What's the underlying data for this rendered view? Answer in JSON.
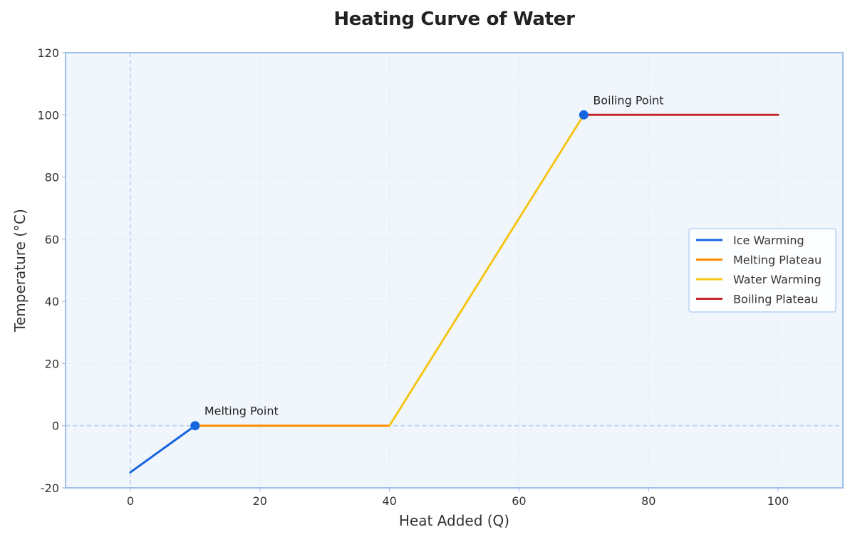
{
  "chart_data": {
    "type": "line",
    "title": "Heating Curve of Water",
    "xlabel": "Heat Added (Q)",
    "ylabel": "Temperature (°C)",
    "xlim": [
      -10,
      110
    ],
    "ylim": [
      -20,
      120
    ],
    "xticks": [
      0,
      20,
      40,
      60,
      80,
      100
    ],
    "yticks": [
      -20,
      0,
      20,
      40,
      60,
      80,
      100,
      120
    ],
    "grid": true,
    "reference_lines": [
      {
        "axis": "x",
        "value": 0,
        "style": "dashed"
      },
      {
        "axis": "y",
        "value": 0,
        "style": "dashed"
      }
    ],
    "legend_position": "right",
    "series": [
      {
        "name": "Ice Warming",
        "color": "#1565e0",
        "x": [
          0,
          10
        ],
        "y": [
          -15,
          0
        ]
      },
      {
        "name": "Melting Plateau",
        "color": "#ff8c00",
        "x": [
          10,
          40
        ],
        "y": [
          0,
          0
        ]
      },
      {
        "name": "Water Warming",
        "color": "#f5c518",
        "x": [
          40,
          70
        ],
        "y": [
          0,
          100
        ]
      },
      {
        "name": "Boiling Plateau",
        "color": "#c62828",
        "x": [
          70,
          100
        ],
        "y": [
          100,
          100
        ]
      }
    ],
    "annotations": [
      {
        "text": "Melting Point",
        "x": 10,
        "y": 0,
        "marker_color": "#1565e0"
      },
      {
        "text": "Boiling Point",
        "x": 70,
        "y": 100,
        "marker_color": "#1565e0"
      }
    ]
  }
}
